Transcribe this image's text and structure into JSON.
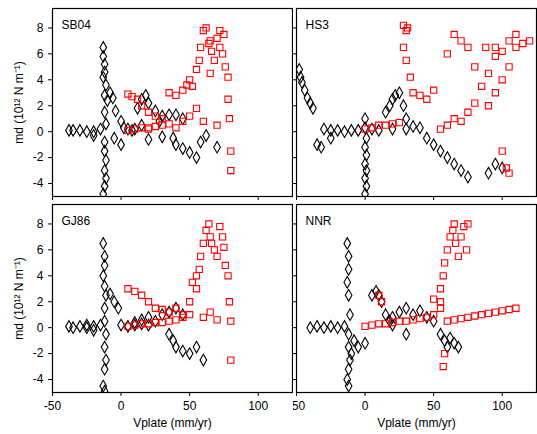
{
  "chart_data": [
    {
      "type": "scatter",
      "title": "SB04",
      "y_label": "md (10¹² N m⁻¹)",
      "xlim": [
        -50,
        125
      ],
      "xticks": [
        -50,
        0,
        50,
        100
      ],
      "ylim": [
        -5,
        9.5
      ],
      "yticks": [
        -4,
        -2,
        0,
        2,
        4,
        6,
        8
      ],
      "tick_labels": "y",
      "series": [
        {
          "color": "#000000",
          "marker": "diamond",
          "x": [
            -38,
            -35,
            -30,
            -25,
            -20,
            -15,
            -13,
            -13,
            -12,
            -12,
            -13,
            -11,
            -12,
            -10,
            -12,
            -11,
            -12,
            -12,
            -11,
            -12,
            -11,
            -12,
            -13,
            -8,
            -6,
            -4,
            0,
            2,
            5,
            8,
            10,
            12,
            15,
            18,
            20,
            25,
            28,
            30,
            35,
            38,
            40,
            45,
            50,
            55,
            58,
            62,
            30,
            20,
            15,
            45,
            40,
            70,
            -20,
            -5,
            0
          ],
          "values": [
            0.1,
            0.1,
            0.1,
            0,
            0,
            0.2,
            6.5,
            5.8,
            5.2,
            4.6,
            4.2,
            3.6,
            2.8,
            2.4,
            1.5,
            0.6,
            -0.8,
            -1.5,
            -2.2,
            -3,
            -3.6,
            -4.2,
            -4.8,
            3,
            2.6,
            1.6,
            0.8,
            0.3,
            0.2,
            0.1,
            0.2,
            1.8,
            2.5,
            2.8,
            2.2,
            1.6,
            0.8,
            1.2,
            1.3,
            -0.5,
            -1,
            -1.3,
            -1.6,
            -2,
            -0.8,
            -0.3,
            -0.4,
            -0.6,
            0.5,
            1,
            1.3,
            -1.2,
            -0.3,
            -0.5,
            -1
          ]
        },
        {
          "color": "#ff0000",
          "marker": "square",
          "x": [
            5,
            10,
            15,
            20,
            25,
            30,
            35,
            40,
            45,
            50,
            5,
            8,
            12,
            15,
            20,
            25,
            30,
            20,
            45,
            48,
            50,
            52,
            55,
            57,
            58,
            60,
            62,
            65,
            66,
            68,
            70,
            72,
            74,
            75,
            76,
            78,
            78,
            79,
            80,
            80,
            72,
            64,
            55,
            60,
            70,
            35,
            40,
            65
          ],
          "values": [
            0.1,
            0.2,
            0.3,
            0.3,
            0.4,
            0.5,
            0.6,
            0.3,
            0.8,
            1.2,
            2.9,
            2.7,
            2.5,
            2,
            1.5,
            1.2,
            1,
            0.2,
            3.2,
            3.6,
            4,
            3.5,
            4.8,
            5.5,
            6.5,
            7.8,
            8,
            7,
            6.2,
            5.5,
            7.2,
            6.5,
            6,
            7.5,
            5,
            4.2,
            2.5,
            1,
            -1.5,
            -3,
            7.8,
            6.8,
            1.8,
            0.8,
            0.5,
            3,
            2.8,
            4.5
          ]
        }
      ]
    },
    {
      "type": "scatter",
      "title": "HS3",
      "xlim": [
        -50,
        125
      ],
      "xticks": [
        -50,
        0,
        50,
        100
      ],
      "ylim": [
        -5,
        9.5
      ],
      "yticks": [
        -4,
        -2,
        0,
        2,
        4,
        6,
        8
      ],
      "tick_labels": false,
      "series": [
        {
          "color": "#000000",
          "marker": "diamond",
          "x": [
            -48,
            -47,
            -46,
            -44,
            -42,
            -40,
            -38,
            -35,
            -32,
            -30,
            -25,
            -20,
            -15,
            -10,
            -5,
            0,
            0,
            1,
            0,
            1,
            0,
            1,
            0,
            1,
            0,
            5,
            10,
            15,
            18,
            20,
            22,
            25,
            28,
            30,
            35,
            40,
            45,
            50,
            55,
            60,
            65,
            70,
            75,
            90,
            95,
            100,
            30,
            20,
            -25
          ],
          "values": [
            4.8,
            4.2,
            3.8,
            3.2,
            2.6,
            2.2,
            1.8,
            -1,
            -1.2,
            0.2,
            0.1,
            0.1,
            0,
            0.1,
            0.1,
            1,
            0.3,
            -0.5,
            -1.2,
            -1.8,
            -2.5,
            -3,
            -3.6,
            -4.2,
            -4.8,
            0.2,
            0.1,
            1.5,
            2,
            2.5,
            2.8,
            3,
            2,
            1,
            0.4,
            0.3,
            -0.5,
            -1,
            -1.5,
            -2,
            -2.5,
            -3,
            -3.5,
            -3.2,
            -2.5,
            -2.8,
            0.2,
            0.2,
            -0.5
          ]
        },
        {
          "color": "#ff0000",
          "marker": "square",
          "x": [
            0,
            5,
            10,
            15,
            20,
            25,
            28,
            30,
            31,
            28,
            30,
            33,
            35,
            40,
            45,
            50,
            55,
            60,
            65,
            70,
            75,
            80,
            85,
            90,
            95,
            100,
            105,
            110,
            115,
            120,
            100,
            105,
            110,
            95,
            88,
            75,
            70,
            65,
            60,
            95,
            100,
            103,
            105,
            80,
            90
          ],
          "values": [
            0.2,
            0.3,
            0.5,
            0.5,
            0.6,
            0.7,
            8.2,
            7.8,
            8,
            6.5,
            5.5,
            4.2,
            3,
            2.8,
            2.5,
            3.2,
            0.2,
            0.5,
            1,
            0.8,
            1.5,
            2.2,
            3.5,
            4.5,
            5.8,
            6.2,
            7,
            7.5,
            6.8,
            7,
            4,
            5,
            6.5,
            6.5,
            6.5,
            6.5,
            7,
            7.5,
            6,
            3,
            -1.5,
            -2.8,
            -3.2,
            5,
            2
          ]
        }
      ]
    },
    {
      "type": "scatter",
      "title": "GJ86",
      "x_label": "Vplate (mm/yr)",
      "y_label": "md (10¹² N m⁻¹)",
      "xlim": [
        -50,
        125
      ],
      "xticks": [
        -50,
        0,
        50,
        100
      ],
      "ylim": [
        -5,
        9.5
      ],
      "yticks": [
        -4,
        -2,
        0,
        2,
        4,
        6,
        8
      ],
      "tick_labels": true,
      "series": [
        {
          "color": "#000000",
          "marker": "diamond",
          "x": [
            -38,
            -35,
            -30,
            -25,
            -20,
            -15,
            -13,
            -12,
            -12,
            -13,
            -12,
            -11,
            -12,
            -12,
            -11,
            -12,
            -11,
            -12,
            -13,
            -12,
            -8,
            -5,
            -2,
            0,
            5,
            10,
            15,
            20,
            25,
            30,
            35,
            40,
            45,
            35,
            38,
            40,
            45,
            50,
            55,
            60,
            20,
            15,
            10,
            -20,
            -25
          ],
          "values": [
            0.1,
            0,
            0.1,
            0,
            0.1,
            0.2,
            6.5,
            5.5,
            4.8,
            4,
            3.2,
            2.5,
            1.5,
            0.5,
            -0.5,
            -1.5,
            -2.5,
            -3.2,
            -4.5,
            -4.9,
            2.6,
            2,
            1.5,
            0.2,
            0.1,
            0.2,
            0.3,
            0.2,
            0.5,
            1,
            1.2,
            1.5,
            1,
            -0.5,
            -1,
            -1.5,
            -1.8,
            -2,
            -1.5,
            -2.5,
            0.8,
            0.6,
            0.4,
            -0.2,
            0.2
          ]
        },
        {
          "color": "#ff0000",
          "marker": "square",
          "x": [
            5,
            10,
            15,
            20,
            25,
            30,
            35,
            40,
            45,
            50,
            5,
            10,
            15,
            20,
            25,
            30,
            35,
            40,
            50,
            52,
            55,
            57,
            58,
            60,
            62,
            64,
            65,
            66,
            68,
            70,
            72,
            74,
            75,
            76,
            78,
            79,
            80,
            80,
            60,
            65,
            70,
            55,
            45
          ],
          "values": [
            0.1,
            0.2,
            0.3,
            0.3,
            0.4,
            0.4,
            0.5,
            0.6,
            0.8,
            1,
            3,
            2.8,
            2.5,
            2,
            1.5,
            1.4,
            1.2,
            1.5,
            2,
            3.5,
            4,
            4.5,
            5.5,
            6.5,
            7.5,
            8,
            7,
            6.5,
            6,
            5.5,
            7.8,
            7,
            6.2,
            4.8,
            4,
            2,
            0.5,
            -2.5,
            0.8,
            1.2,
            0.6,
            3,
            1
          ]
        }
      ]
    },
    {
      "type": "scatter",
      "title": "NNR",
      "x_label": "Vplate (mm/yr)",
      "xlim": [
        -50,
        125
      ],
      "xticks": [
        -50,
        0,
        50,
        100
      ],
      "ylim": [
        -5,
        9.5
      ],
      "yticks": [
        -4,
        -2,
        0,
        2,
        4,
        6,
        8
      ],
      "tick_labels": "x",
      "series": [
        {
          "color": "#000000",
          "marker": "diamond",
          "x": [
            -40,
            -35,
            -30,
            -25,
            -20,
            -15,
            -13,
            -12,
            -12,
            -13,
            -12,
            -11,
            -12,
            -12,
            -11,
            -12,
            -13,
            -12,
            -5,
            0,
            5,
            8,
            10,
            12,
            15,
            18,
            20,
            25,
            30,
            35,
            40,
            45,
            50,
            55,
            58,
            60,
            62,
            65,
            68,
            30,
            20,
            -10,
            -8
          ],
          "values": [
            0,
            0.1,
            0,
            0.1,
            0,
            0.1,
            6.5,
            5.5,
            4.5,
            3.5,
            2.5,
            1,
            -0.5,
            -1.5,
            -2.5,
            -3.2,
            -4,
            -4.5,
            -1.5,
            -1.2,
            2.5,
            2.8,
            2.5,
            2,
            1,
            0.5,
            0.8,
            1.2,
            1.5,
            1,
            1.3,
            0.8,
            0.5,
            -0.5,
            -1,
            -1.5,
            -0.8,
            -1.2,
            -1.5,
            -0.5,
            0.2,
            -2,
            -1
          ]
        },
        {
          "color": "#ff0000",
          "marker": "square",
          "x": [
            0,
            5,
            10,
            15,
            20,
            25,
            30,
            35,
            40,
            45,
            50,
            55,
            55,
            57,
            58,
            60,
            62,
            64,
            65,
            66,
            68,
            70,
            72,
            74,
            75,
            60,
            65,
            70,
            75,
            80,
            85,
            90,
            95,
            100,
            105,
            110,
            58,
            57,
            55,
            50,
            10,
            12
          ],
          "values": [
            0.1,
            0.2,
            0.3,
            0.3,
            0.4,
            0.5,
            0.5,
            0.6,
            0.7,
            0.8,
            1,
            2,
            3,
            4,
            5,
            6,
            7,
            7.5,
            8,
            6.5,
            5.5,
            7,
            7.8,
            6,
            8,
            0.5,
            0.6,
            0.7,
            0.8,
            0.9,
            1,
            1.1,
            1.2,
            1.3,
            1.4,
            1.5,
            -2,
            -3,
            1.5,
            2.2,
            2.5,
            2
          ]
        }
      ]
    }
  ]
}
